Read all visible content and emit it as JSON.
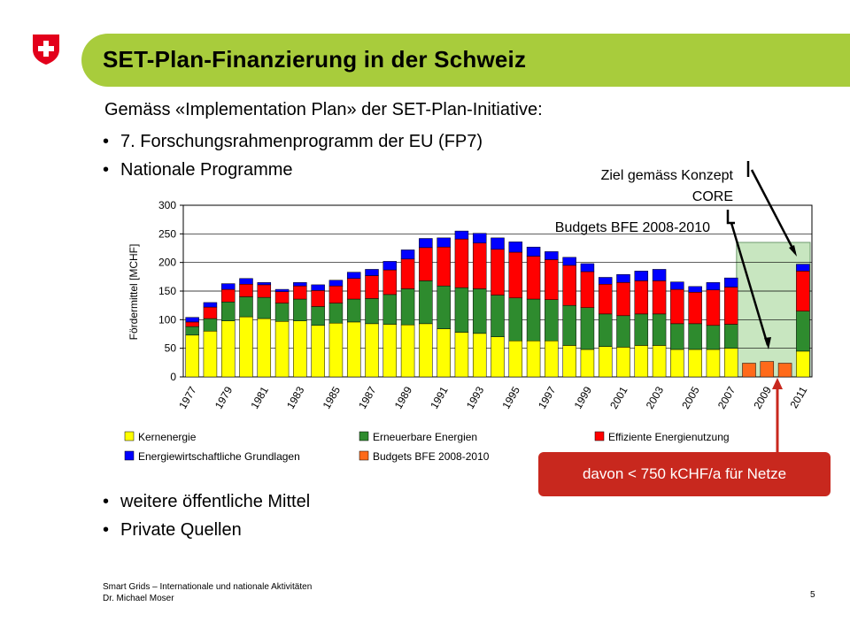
{
  "header": {
    "title": "SET-Plan-Finanzierung in der Schweiz"
  },
  "body": {
    "intro": "Gemäss «Implementation Plan» der SET-Plan-Initiative:",
    "bullets_top": [
      "7. Forschungsrahmenprogramm der EU (FP7)",
      "Nationale Programme"
    ],
    "bullets_bottom": [
      "weitere öffentliche Mittel",
      "Private Quellen"
    ]
  },
  "annotations": {
    "core_line1": "Ziel gemäss Konzept",
    "core_line2": "CORE",
    "budget": "Budgets BFE 2008-2010",
    "callout": "davon < 750 kCHF/a für Netze"
  },
  "footer": {
    "line1": "Smart Grids – Internationale und nationale Aktivitäten",
    "line2": "Dr. Michael Moser",
    "page": "5"
  },
  "colors": {
    "title_bar": "#a8cc3c",
    "kernenergie": "#ffff00",
    "erneuerbare": "#2e8b2e",
    "effiziente": "#ff0000",
    "grundlagen": "#0000ff",
    "budgets": "#ff6a1a",
    "highlight_box": "#c8e6c0",
    "callout": "#c8281e",
    "swiss_red": "#e3001b"
  },
  "chart_data": {
    "type": "bar",
    "stacked": true,
    "ylabel": "Fördermittel [MCHF]",
    "ylim": [
      0,
      300
    ],
    "yticks": [
      0,
      50,
      100,
      150,
      200,
      250,
      300
    ],
    "categories": [
      "1977",
      "1978",
      "1979",
      "1980",
      "1981",
      "1982",
      "1983",
      "1984",
      "1985",
      "1986",
      "1987",
      "1988",
      "1989",
      "1990",
      "1991",
      "1992",
      "1993",
      "1994",
      "1995",
      "1996",
      "1997",
      "1998",
      "1999",
      "2000",
      "2001",
      "2002",
      "2003",
      "2004",
      "2005",
      "2006",
      "2007",
      "2008",
      "2009",
      "2010",
      "2011"
    ],
    "xtick_labels": [
      "1977",
      "1979",
      "1981",
      "1983",
      "1985",
      "1987",
      "1989",
      "1991",
      "1993",
      "1995",
      "1997",
      "1999",
      "2001",
      "2003",
      "2005",
      "2007",
      "2009",
      "2011"
    ],
    "grid": true,
    "legend_position": "bottom",
    "series": [
      {
        "name": "Kernenergie",
        "color": "#ffff00",
        "values": [
          73,
          80,
          98,
          105,
          102,
          97,
          98,
          90,
          94,
          96,
          93,
          92,
          91,
          93,
          84,
          78,
          76,
          70,
          63,
          63,
          63,
          55,
          48,
          53,
          52,
          55,
          55,
          48,
          48,
          48,
          50,
          null,
          null,
          null,
          45
        ]
      },
      {
        "name": "Erneuerbare Energien",
        "color": "#2e8b2e",
        "values": [
          15,
          22,
          33,
          35,
          37,
          32,
          38,
          33,
          35,
          40,
          44,
          52,
          63,
          75,
          75,
          78,
          78,
          73,
          75,
          73,
          72,
          70,
          73,
          57,
          55,
          55,
          55,
          45,
          45,
          42,
          42,
          null,
          null,
          null,
          70
        ]
      },
      {
        "name": "Effiziente Energienutzung",
        "color": "#ff0000",
        "values": [
          8,
          20,
          22,
          22,
          22,
          20,
          23,
          28,
          30,
          36,
          40,
          43,
          52,
          58,
          68,
          85,
          80,
          80,
          80,
          75,
          70,
          70,
          63,
          52,
          58,
          58,
          58,
          60,
          55,
          62,
          65,
          null,
          null,
          null,
          70
        ]
      },
      {
        "name": "Energiewirtschaftliche Grundlagen",
        "color": "#0000ff",
        "values": [
          8,
          8,
          10,
          10,
          4,
          4,
          6,
          10,
          10,
          11,
          11,
          15,
          16,
          16,
          16,
          14,
          17,
          20,
          18,
          16,
          14,
          14,
          14,
          12,
          14,
          17,
          20,
          13,
          10,
          13,
          16,
          null,
          null,
          null,
          12
        ]
      },
      {
        "name": "Budgets BFE 2008-2010",
        "color": "#ff6a1a",
        "values": [
          null,
          null,
          null,
          null,
          null,
          null,
          null,
          null,
          null,
          null,
          null,
          null,
          null,
          null,
          null,
          null,
          null,
          null,
          null,
          null,
          null,
          null,
          null,
          null,
          null,
          null,
          null,
          null,
          null,
          null,
          null,
          24,
          27,
          24,
          null
        ]
      }
    ]
  }
}
